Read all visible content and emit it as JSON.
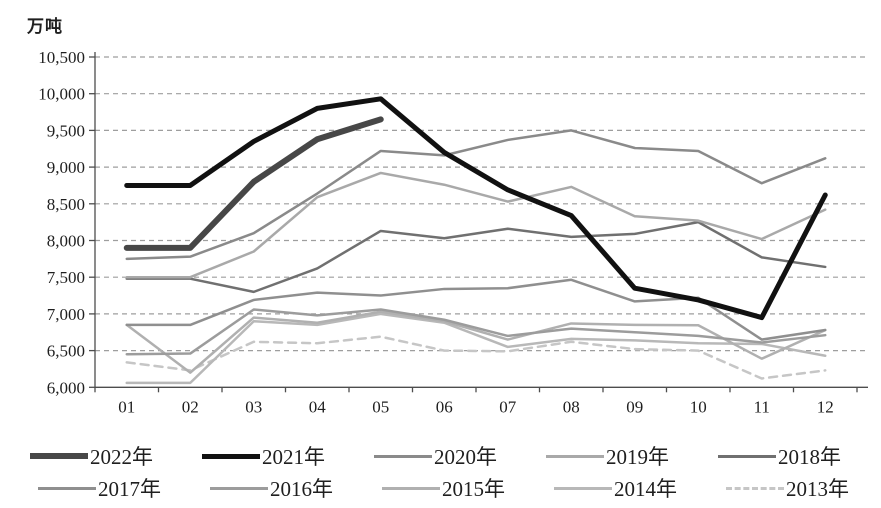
{
  "unit_label": "万吨",
  "chart_data": {
    "type": "line",
    "title": "",
    "ylabel": "万吨",
    "xlabel": "",
    "categories": [
      "01",
      "02",
      "03",
      "04",
      "05",
      "06",
      "07",
      "08",
      "09",
      "10",
      "11",
      "12"
    ],
    "ylim": [
      6000,
      10500
    ],
    "ytick_step": 500,
    "yticks": [
      {
        "value": 10500,
        "label": "10,500"
      },
      {
        "value": 10000,
        "label": "10,000"
      },
      {
        "value": 9500,
        "label": "9,500"
      },
      {
        "value": 9000,
        "label": "9,000"
      },
      {
        "value": 8500,
        "label": "8,500"
      },
      {
        "value": 8000,
        "label": "8,000"
      },
      {
        "value": 7500,
        "label": "7,500"
      },
      {
        "value": 7000,
        "label": "7,000"
      },
      {
        "value": 6500,
        "label": "6,500"
      },
      {
        "value": 6000,
        "label": "6,000"
      }
    ],
    "grid": "horizontal-dashed",
    "legend_position": "bottom",
    "axis_color": "#4d4d4d",
    "grid_color": "#9e9e9e",
    "series": [
      {
        "name": "2022年",
        "color": "#474747",
        "width": 6,
        "dash": null,
        "values": [
          7900,
          7900,
          8800,
          9380,
          9650,
          null,
          null,
          null,
          null,
          null,
          null,
          null
        ]
      },
      {
        "name": "2021年",
        "color": "#111111",
        "width": 5,
        "dash": null,
        "values": [
          8750,
          8750,
          9350,
          9800,
          9930,
          9200,
          8690,
          8340,
          7350,
          7190,
          6950,
          8620
        ]
      },
      {
        "name": "2020年",
        "color": "#8a8a8a",
        "width": 2.5,
        "dash": null,
        "values": [
          7750,
          7780,
          8100,
          8640,
          9220,
          9160,
          9370,
          9500,
          9260,
          9220,
          8780,
          9120
        ]
      },
      {
        "name": "2019年",
        "color": "#a9a9a9",
        "width": 2.5,
        "dash": null,
        "values": [
          7500,
          7500,
          7850,
          8590,
          8920,
          8760,
          8530,
          8730,
          8330,
          8270,
          8020,
          8420
        ]
      },
      {
        "name": "2018年",
        "color": "#707070",
        "width": 2.5,
        "dash": null,
        "values": [
          7480,
          7480,
          7300,
          7620,
          8130,
          8030,
          8160,
          8050,
          8090,
          8250,
          7770,
          7640
        ]
      },
      {
        "name": "2017年",
        "color": "#8f8f8f",
        "width": 2.5,
        "dash": null,
        "values": [
          6850,
          6850,
          7190,
          7290,
          7250,
          7340,
          7350,
          7465,
          7170,
          7220,
          6650,
          6780
        ]
      },
      {
        "name": "2016年",
        "color": "#9c9c9c",
        "width": 2.5,
        "dash": null,
        "values": [
          6450,
          6460,
          7060,
          6980,
          7060,
          6920,
          6700,
          6800,
          6750,
          6700,
          6610,
          6710
        ]
      },
      {
        "name": "2015年",
        "color": "#b0b0b0",
        "width": 2.5,
        "dash": null,
        "values": [
          6850,
          6200,
          6950,
          6880,
          7030,
          6900,
          6650,
          6870,
          6850,
          6845,
          6390,
          6780
        ]
      },
      {
        "name": "2014年",
        "color": "#b8b8b8",
        "width": 2.5,
        "dash": null,
        "values": [
          6060,
          6060,
          6900,
          6850,
          7000,
          6880,
          6550,
          6660,
          6640,
          6600,
          6590,
          6430
        ]
      },
      {
        "name": "2013年",
        "color": "#c6c6c6",
        "width": 2.5,
        "dash": "8 6",
        "values": [
          6340,
          6230,
          6620,
          6600,
          6690,
          6500,
          6490,
          6620,
          6520,
          6500,
          6120,
          6230
        ]
      }
    ],
    "legend_rows": [
      [
        0,
        1,
        2,
        3,
        4
      ],
      [
        5,
        6,
        7,
        8,
        9
      ]
    ]
  }
}
